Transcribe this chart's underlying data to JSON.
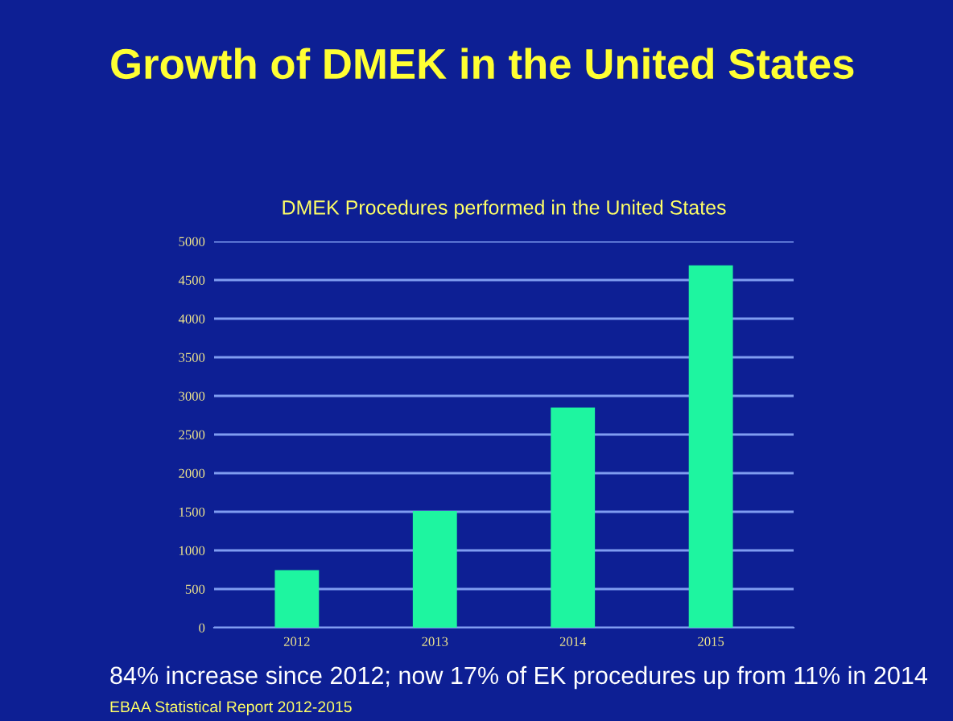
{
  "chart_data": {
    "type": "bar",
    "title": "Growth of DMEK in the United States",
    "subtitle": "DMEK Procedures performed in the United States",
    "categories": [
      "2012",
      "2013",
      "2014",
      "2015"
    ],
    "values": [
      745,
      1510,
      2850,
      4690
    ],
    "color": "#1ef5a0",
    "ylim": [
      0,
      5000
    ],
    "yticks": [
      0,
      500,
      1000,
      1500,
      2000,
      2500,
      3000,
      3500,
      4000,
      4500,
      5000
    ],
    "grid": "y",
    "annotations": [
      "84% increase since 2012; now 17% of EK procedures up from 11% in 2014",
      "EBAA Statistical Report 2012-2015"
    ]
  }
}
